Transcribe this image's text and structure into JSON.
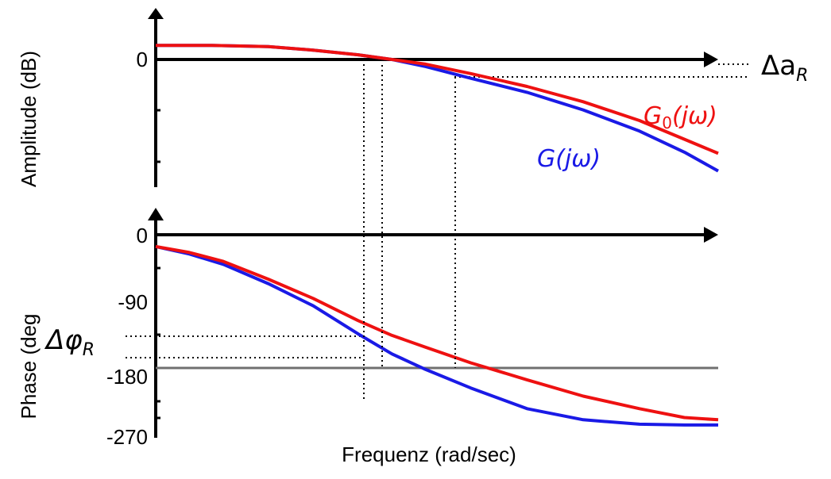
{
  "colors": {
    "g0": "#ee1111",
    "g": "#1a1ae6",
    "axis": "#000000",
    "ref_line": "#707070"
  },
  "chart_data": [
    {
      "type": "line",
      "panel": "amplitude",
      "ylabel": "Amplitude (dB)",
      "xlabel": "",
      "yticks": [
        {
          "value": 0,
          "label": "0"
        }
      ],
      "x_log_scale": true,
      "x_unit": "normalized log frequency (0 = left axis, 1 = arrow tip)",
      "ylim_rel": [
        -1.0,
        0.15
      ],
      "grid": false,
      "legend": "inline labels right",
      "reference_lines": [
        {
          "name": "Δa_R upper",
          "value": 0.0
        },
        {
          "name": "Δa_R lower",
          "value": -0.14
        }
      ],
      "annotation": {
        "label": "Δa",
        "subscript": "R"
      },
      "series": [
        {
          "name": "G₀(jω)",
          "color": "#ee1111",
          "x": [
            0.0,
            0.1,
            0.2,
            0.28,
            0.36,
            0.42,
            0.48,
            0.56,
            0.66,
            0.76,
            0.86,
            0.94,
            1.0
          ],
          "y": [
            0.12,
            0.12,
            0.11,
            0.08,
            0.04,
            0.0,
            -0.04,
            -0.12,
            -0.23,
            -0.36,
            -0.52,
            -0.68,
            -0.8
          ]
        },
        {
          "name": "G(jω)",
          "color": "#1a1ae6",
          "x": [
            0.0,
            0.1,
            0.2,
            0.28,
            0.36,
            0.42,
            0.48,
            0.56,
            0.66,
            0.76,
            0.86,
            0.94,
            1.0
          ],
          "y": [
            0.12,
            0.12,
            0.11,
            0.08,
            0.04,
            0.0,
            -0.06,
            -0.16,
            -0.28,
            -0.43,
            -0.61,
            -0.79,
            -0.95
          ]
        }
      ]
    },
    {
      "type": "line",
      "panel": "phase",
      "ylabel": "Phase (deg",
      "xlabel": "Frequenz (rad/sec)",
      "yticks": [
        {
          "value": 0,
          "label": "0"
        },
        {
          "value": -90,
          "label": "-90"
        },
        {
          "value": -180,
          "label": "-180"
        },
        {
          "value": -270,
          "label": "-270"
        }
      ],
      "ylim": [
        -270,
        0
      ],
      "x_log_scale": true,
      "grid": false,
      "reference_lines": [
        {
          "name": "-180 line",
          "value": -180
        },
        {
          "name": "Δφ_R upper",
          "value": -138
        },
        {
          "name": "Δφ_R lower",
          "value": -166
        }
      ],
      "annotation": {
        "label": "Δφ",
        "subscript": "R"
      },
      "series": [
        {
          "name": "G₀(jω)",
          "color": "#ee1111",
          "x": [
            0.0,
            0.06,
            0.12,
            0.2,
            0.28,
            0.36,
            0.42,
            0.48,
            0.56,
            0.66,
            0.76,
            0.86,
            0.94,
            1.0
          ],
          "y": [
            -16,
            -24,
            -36,
            -60,
            -86,
            -116,
            -136,
            -152,
            -173,
            -196,
            -218,
            -235,
            -247,
            -250
          ]
        },
        {
          "name": "G(jω)",
          "color": "#1a1ae6",
          "x": [
            0.0,
            0.06,
            0.12,
            0.2,
            0.28,
            0.36,
            0.42,
            0.48,
            0.56,
            0.66,
            0.76,
            0.86,
            0.94,
            1.0
          ],
          "y": [
            -16,
            -26,
            -40,
            -66,
            -96,
            -134,
            -161,
            -182,
            -207,
            -235,
            -250,
            -256,
            -257,
            -257
          ]
        }
      ]
    }
  ],
  "labels": {
    "g0_main": "G",
    "g0_sub": "0",
    "g0_arg": "(jω)",
    "g_main": "G",
    "g_arg": "(jω)"
  }
}
